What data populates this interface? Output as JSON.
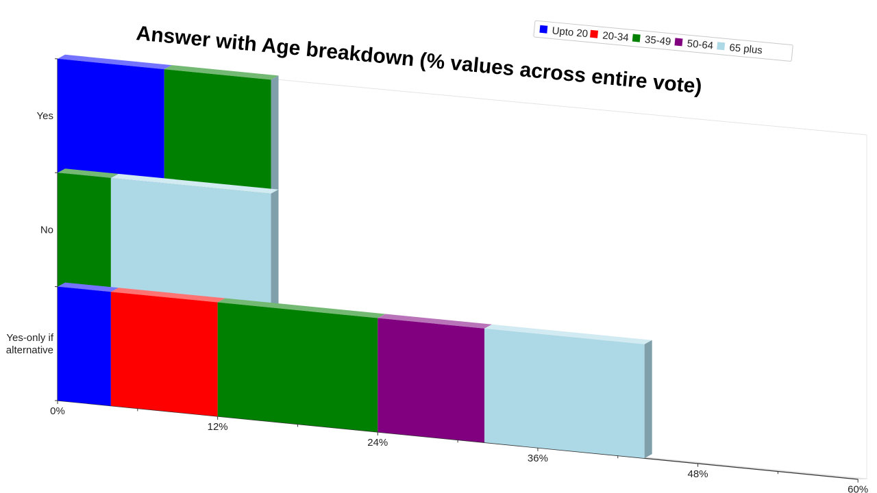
{
  "chart_data": {
    "type": "bar",
    "orientation": "horizontal",
    "stacked": true,
    "title": "Answer with Age breakdown (% values across entire vote)",
    "categories": [
      "Yes",
      "No",
      "Yes-only if alternative"
    ],
    "category_lines": [
      [
        "Yes"
      ],
      [
        "No"
      ],
      [
        "Yes-only if",
        "alternative"
      ]
    ],
    "series": [
      {
        "name": "Upto 20",
        "color": "#0000ff",
        "values": [
          8,
          0,
          4
        ]
      },
      {
        "name": "20-34",
        "color": "#ff0000",
        "values": [
          0,
          0,
          8
        ]
      },
      {
        "name": "35-49",
        "color": "#008000",
        "values": [
          8,
          4,
          12
        ]
      },
      {
        "name": "50-64",
        "color": "#800080",
        "values": [
          0,
          0,
          8
        ]
      },
      {
        "name": "65 plus",
        "color": "#add8e6",
        "values": [
          0,
          12,
          12
        ]
      }
    ],
    "xticks": [
      "0%",
      "12%",
      "24%",
      "36%",
      "48%",
      "60%"
    ],
    "xlim": [
      0,
      60
    ],
    "legend_position": "top-right",
    "grid": false
  }
}
